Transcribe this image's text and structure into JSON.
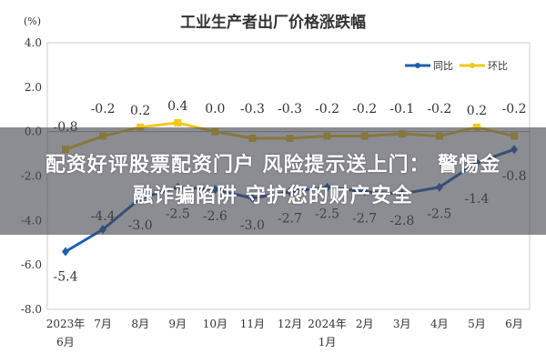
{
  "chart_data": {
    "type": "line",
    "title": "工业生产者出厂价格涨跌幅",
    "ylabel": "(%)",
    "ylim": [
      -8.0,
      4.0
    ],
    "yticks": [
      "4.0",
      "2.0",
      "0.0",
      "-2.0",
      "-4.0",
      "-6.0",
      "-8.0"
    ],
    "categories": [
      "2023年6月",
      "7月",
      "8月",
      "9月",
      "10月",
      "11月",
      "12月",
      "2024年1月",
      "2月",
      "3月",
      "4月",
      "5月",
      "6月"
    ],
    "category_lines": [
      [
        "2023年",
        "6月"
      ],
      [
        "7月"
      ],
      [
        "8月"
      ],
      [
        "9月"
      ],
      [
        "10月"
      ],
      [
        "11月"
      ],
      [
        "12月"
      ],
      [
        "2024年",
        "1月"
      ],
      [
        "2月"
      ],
      [
        "3月"
      ],
      [
        "4月"
      ],
      [
        "5月"
      ],
      [
        "6月"
      ]
    ],
    "series": [
      {
        "name": "同比",
        "color": "#1f5fb0",
        "values": [
          -5.4,
          -4.4,
          -3.0,
          -2.5,
          -2.6,
          -3.0,
          -2.7,
          -2.5,
          -2.7,
          -2.8,
          -2.5,
          -1.4,
          -0.8
        ]
      },
      {
        "name": "环比",
        "color": "#f2c81e",
        "values": [
          -0.8,
          -0.2,
          0.2,
          0.4,
          0.0,
          -0.3,
          -0.3,
          -0.2,
          -0.2,
          -0.1,
          -0.2,
          0.2,
          -0.2
        ]
      }
    ],
    "legend": "top-right",
    "grid": false
  },
  "banner": {
    "line1": "配资好评股票配资门户 风险提示送上门： 警惕金",
    "line2": "融诈骗陷阱 守护您的财产安全"
  }
}
